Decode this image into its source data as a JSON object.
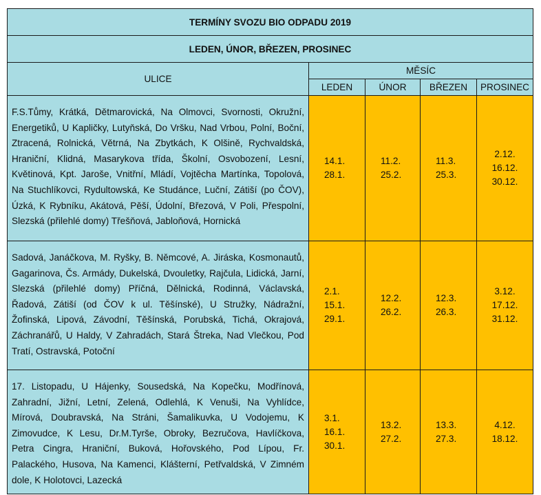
{
  "title": "TERMÍNY SVOZU BIO ODPADU 2019",
  "subtitle": "LEDEN, ÚNOR, BŘEZEN, PROSINEC",
  "header": {
    "ulice": "ULICE",
    "mesic": "MĚSÍC",
    "months": [
      "LEDEN",
      "ÚNOR",
      "BŘEZEN",
      "PROSINEC"
    ]
  },
  "rows": [
    {
      "streets": "F.S.Tůmy, Krátká, Dětmarovická, Na Olmovci, Svornosti, Okružní, Energetiků, U Kapličky, Lutyňská, Do Vršku, Nad Vrbou, Polní, Boční, Ztracená, Rolnická, Větrná, Na Zbytkách, K Olšině, Rychvaldská, Hraniční, Klidná, Masarykova třída, Školní, Osvobození, Lesní, Květinová, Kpt. Jaroše, Vnitřní, Mládí, Vojtěcha Martínka, Topolová, Na Stuchlíkovci, Rydultowská, Ke Studánce, Luční, Zátiší (po ČOV), Úzká, K Rybníku, Akátová, Pěší, Údolní, Březová, V Poli, Přespolní, Slezská (přilehlé domy) Třešňová, Jabloňová, Hornická",
      "leden": [
        "14.1.",
        "28.1."
      ],
      "unor": [
        "11.2.",
        "25.2."
      ],
      "brezen": [
        "11.3.",
        "25.3."
      ],
      "prosinec": [
        "2.12.",
        "16.12.",
        "30.12."
      ]
    },
    {
      "streets": "Sadová, Janáčkova, M. Ryšky, B. Němcové, A. Jiráska, Kosmonautů, Gagarinova, Čs. Armády, Dukelská, Dvouletky, Rajčula, Lidická, Jarní, Slezská (přilehlé domy) Příčná, Dělnická, Rodinná, Václavská, Řadová, Zátiší (od ČOV k ul. Těšínské), U Stružky, Nádražní, Žofinská, Lipová, Závodní, Těšínská, Porubská, Tichá, Okrajová, Záchranářů, U Haldy, V Zahradách, Stará Štreka, Nad Vlečkou, Pod Tratí, Ostravská, Potoční",
      "leden": [
        "2.1.",
        "15.1.",
        "29.1."
      ],
      "unor": [
        "12.2.",
        "26.2."
      ],
      "brezen": [
        "12.3.",
        "26.3."
      ],
      "prosinec": [
        "3.12.",
        "17.12.",
        "31.12."
      ]
    },
    {
      "streets": "17. Listopadu, U Hájenky, Sousedská, Na Kopečku, Modřínová, Zahradní, Jižní, Letní, Zelená, Odlehlá, K Venuši, Na Vyhlídce, Mírová, Doubravská, Na Stráni, Šamalikuvka, U Vodojemu, K Zimovudce, K Lesu, Dr.M.Tyrše, Obroky, Bezručova, Havlíčkova, Petra Cingra, Hraniční, Buková, Hořovského, Pod Lípou, Fr. Palackého, Husova, Na Kamenci, Klášterní, Petřvaldská, V Zimném dole, K Holotovci, Lazecká",
      "leden": [
        "3.1.",
        "16.1.",
        "30.1."
      ],
      "unor": [
        "13.2.",
        "27.2."
      ],
      "brezen": [
        "13.3.",
        "27.3."
      ],
      "prosinec": [
        "4.12.",
        "18.12."
      ]
    }
  ]
}
